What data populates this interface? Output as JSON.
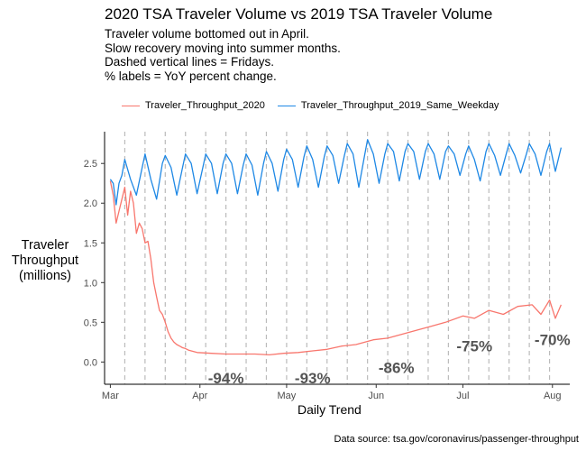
{
  "title": "2020 TSA Traveler Volume vs 2019 TSA Traveler Volume",
  "subtitle_lines": [
    "Traveler volume bottomed out in April.",
    "Slow recovery moving into summer months.",
    "Dashed vertical lines = Fridays.",
    "% labels = YoY percent change."
  ],
  "caption": "Data source: tsa.gov/coronavirus/passenger-throughput",
  "colors": {
    "series_2020": "#F8766D",
    "series_2019": "#1E88E5",
    "friday_lines": "#BBBBBB",
    "annotation": "#555555"
  },
  "chart_data": {
    "type": "line",
    "xlabel": "Daily Trend",
    "ylabel": [
      "Traveler",
      "Throughput",
      "(millions)"
    ],
    "x_range": [
      "2020-03-01",
      "2020-08-05"
    ],
    "ylim": [
      -0.28,
      2.9
    ],
    "yticks": [
      0.0,
      0.5,
      1.0,
      1.5,
      2.0,
      2.5
    ],
    "ytick_labels": [
      "0.0",
      "0.5",
      "1.0",
      "1.5",
      "2.0",
      "2.5"
    ],
    "xticks": [
      "2020-03-01",
      "2020-04-01",
      "2020-05-01",
      "2020-06-01",
      "2020-07-01",
      "2020-08-01"
    ],
    "xtick_labels": [
      "Mar",
      "Apr",
      "May",
      "Jun",
      "Jul",
      "Aug"
    ],
    "grid": false,
    "legend_position": "top",
    "friday_lines": [
      "2020-03-06",
      "2020-03-13",
      "2020-03-20",
      "2020-03-27",
      "2020-04-03",
      "2020-04-10",
      "2020-04-17",
      "2020-04-24",
      "2020-05-01",
      "2020-05-08",
      "2020-05-15",
      "2020-05-22",
      "2020-05-29",
      "2020-06-05",
      "2020-06-12",
      "2020-06-19",
      "2020-06-26",
      "2020-07-03",
      "2020-07-10",
      "2020-07-17",
      "2020-07-24",
      "2020-07-31"
    ],
    "series": [
      {
        "name": "Traveler_Throughput_2020",
        "color": "#F8766D",
        "x": [
          "2020-03-01",
          "2020-03-02",
          "2020-03-03",
          "2020-03-04",
          "2020-03-05",
          "2020-03-06",
          "2020-03-07",
          "2020-03-08",
          "2020-03-09",
          "2020-03-10",
          "2020-03-11",
          "2020-03-12",
          "2020-03-13",
          "2020-03-14",
          "2020-03-15",
          "2020-03-16",
          "2020-03-17",
          "2020-03-18",
          "2020-03-19",
          "2020-03-20",
          "2020-03-21",
          "2020-03-22",
          "2020-03-23",
          "2020-03-24",
          "2020-03-25",
          "2020-03-26",
          "2020-03-27",
          "2020-03-28",
          "2020-03-29",
          "2020-03-30",
          "2020-03-31",
          "2020-04-05",
          "2020-04-10",
          "2020-04-15",
          "2020-04-20",
          "2020-04-25",
          "2020-04-30",
          "2020-05-05",
          "2020-05-10",
          "2020-05-15",
          "2020-05-20",
          "2020-05-25",
          "2020-05-31",
          "2020-06-05",
          "2020-06-10",
          "2020-06-15",
          "2020-06-20",
          "2020-06-25",
          "2020-07-01",
          "2020-07-05",
          "2020-07-10",
          "2020-07-15",
          "2020-07-20",
          "2020-07-25",
          "2020-07-28",
          "2020-07-31",
          "2020-08-02",
          "2020-08-04"
        ],
        "values": [
          2.28,
          2.1,
          1.75,
          1.9,
          2.05,
          2.2,
          1.85,
          2.15,
          2.0,
          1.62,
          1.75,
          1.68,
          1.5,
          1.52,
          1.3,
          1.0,
          0.82,
          0.65,
          0.6,
          0.5,
          0.38,
          0.3,
          0.25,
          0.22,
          0.2,
          0.18,
          0.17,
          0.15,
          0.14,
          0.13,
          0.12,
          0.11,
          0.1,
          0.1,
          0.1,
          0.09,
          0.11,
          0.12,
          0.14,
          0.16,
          0.2,
          0.22,
          0.28,
          0.3,
          0.35,
          0.4,
          0.45,
          0.5,
          0.58,
          0.55,
          0.65,
          0.6,
          0.7,
          0.72,
          0.6,
          0.78,
          0.55,
          0.72
        ]
      },
      {
        "name": "Traveler_Throughput_2019_Same_Weekday",
        "color": "#1E88E5",
        "x": [
          "2020-03-01",
          "2020-03-02",
          "2020-03-03",
          "2020-03-04",
          "2020-03-05",
          "2020-03-06",
          "2020-03-08",
          "2020-03-10",
          "2020-03-12",
          "2020-03-13",
          "2020-03-15",
          "2020-03-17",
          "2020-03-19",
          "2020-03-20",
          "2020-03-22",
          "2020-03-24",
          "2020-03-26",
          "2020-03-27",
          "2020-03-29",
          "2020-03-31",
          "2020-04-02",
          "2020-04-03",
          "2020-04-05",
          "2020-04-07",
          "2020-04-09",
          "2020-04-10",
          "2020-04-12",
          "2020-04-14",
          "2020-04-16",
          "2020-04-17",
          "2020-04-19",
          "2020-04-21",
          "2020-04-23",
          "2020-04-24",
          "2020-04-26",
          "2020-04-28",
          "2020-04-30",
          "2020-05-01",
          "2020-05-03",
          "2020-05-05",
          "2020-05-07",
          "2020-05-08",
          "2020-05-10",
          "2020-05-12",
          "2020-05-14",
          "2020-05-15",
          "2020-05-17",
          "2020-05-19",
          "2020-05-21",
          "2020-05-22",
          "2020-05-24",
          "2020-05-26",
          "2020-05-28",
          "2020-05-29",
          "2020-05-31",
          "2020-06-02",
          "2020-06-04",
          "2020-06-05",
          "2020-06-07",
          "2020-06-09",
          "2020-06-11",
          "2020-06-12",
          "2020-06-14",
          "2020-06-16",
          "2020-06-18",
          "2020-06-19",
          "2020-06-21",
          "2020-06-23",
          "2020-06-25",
          "2020-06-26",
          "2020-06-28",
          "2020-06-30",
          "2020-07-02",
          "2020-07-03",
          "2020-07-05",
          "2020-07-07",
          "2020-07-09",
          "2020-07-10",
          "2020-07-12",
          "2020-07-14",
          "2020-07-16",
          "2020-07-17",
          "2020-07-19",
          "2020-07-21",
          "2020-07-23",
          "2020-07-24",
          "2020-07-26",
          "2020-07-28",
          "2020-07-30",
          "2020-07-31",
          "2020-08-02",
          "2020-08-04"
        ],
        "values": [
          2.3,
          2.25,
          1.98,
          2.25,
          2.35,
          2.55,
          2.3,
          2.1,
          2.45,
          2.62,
          2.3,
          2.05,
          2.5,
          2.6,
          2.45,
          2.1,
          2.45,
          2.62,
          2.5,
          2.12,
          2.45,
          2.62,
          2.5,
          2.12,
          2.5,
          2.62,
          2.5,
          2.12,
          2.48,
          2.62,
          2.48,
          2.1,
          2.5,
          2.65,
          2.5,
          2.15,
          2.55,
          2.68,
          2.55,
          2.2,
          2.58,
          2.72,
          2.55,
          2.2,
          2.58,
          2.72,
          2.6,
          2.25,
          2.6,
          2.75,
          2.62,
          2.2,
          2.6,
          2.8,
          2.62,
          2.25,
          2.62,
          2.75,
          2.65,
          2.28,
          2.65,
          2.75,
          2.65,
          2.3,
          2.65,
          2.75,
          2.62,
          2.3,
          2.65,
          2.72,
          2.62,
          2.35,
          2.62,
          2.72,
          2.55,
          2.28,
          2.65,
          2.75,
          2.6,
          2.35,
          2.62,
          2.75,
          2.6,
          2.38,
          2.62,
          2.75,
          2.62,
          2.35,
          2.65,
          2.75,
          2.4,
          2.7
        ]
      }
    ],
    "annotations": [
      {
        "text": "-94%",
        "x": "2020-04-10",
        "y": -0.2
      },
      {
        "text": "-93%",
        "x": "2020-05-10",
        "y": -0.2
      },
      {
        "text": "-86%",
        "x": "2020-06-08",
        "y": -0.07
      },
      {
        "text": "-75%",
        "x": "2020-07-05",
        "y": 0.2
      },
      {
        "text": "-70%",
        "x": "2020-08-01",
        "y": 0.28
      }
    ]
  }
}
